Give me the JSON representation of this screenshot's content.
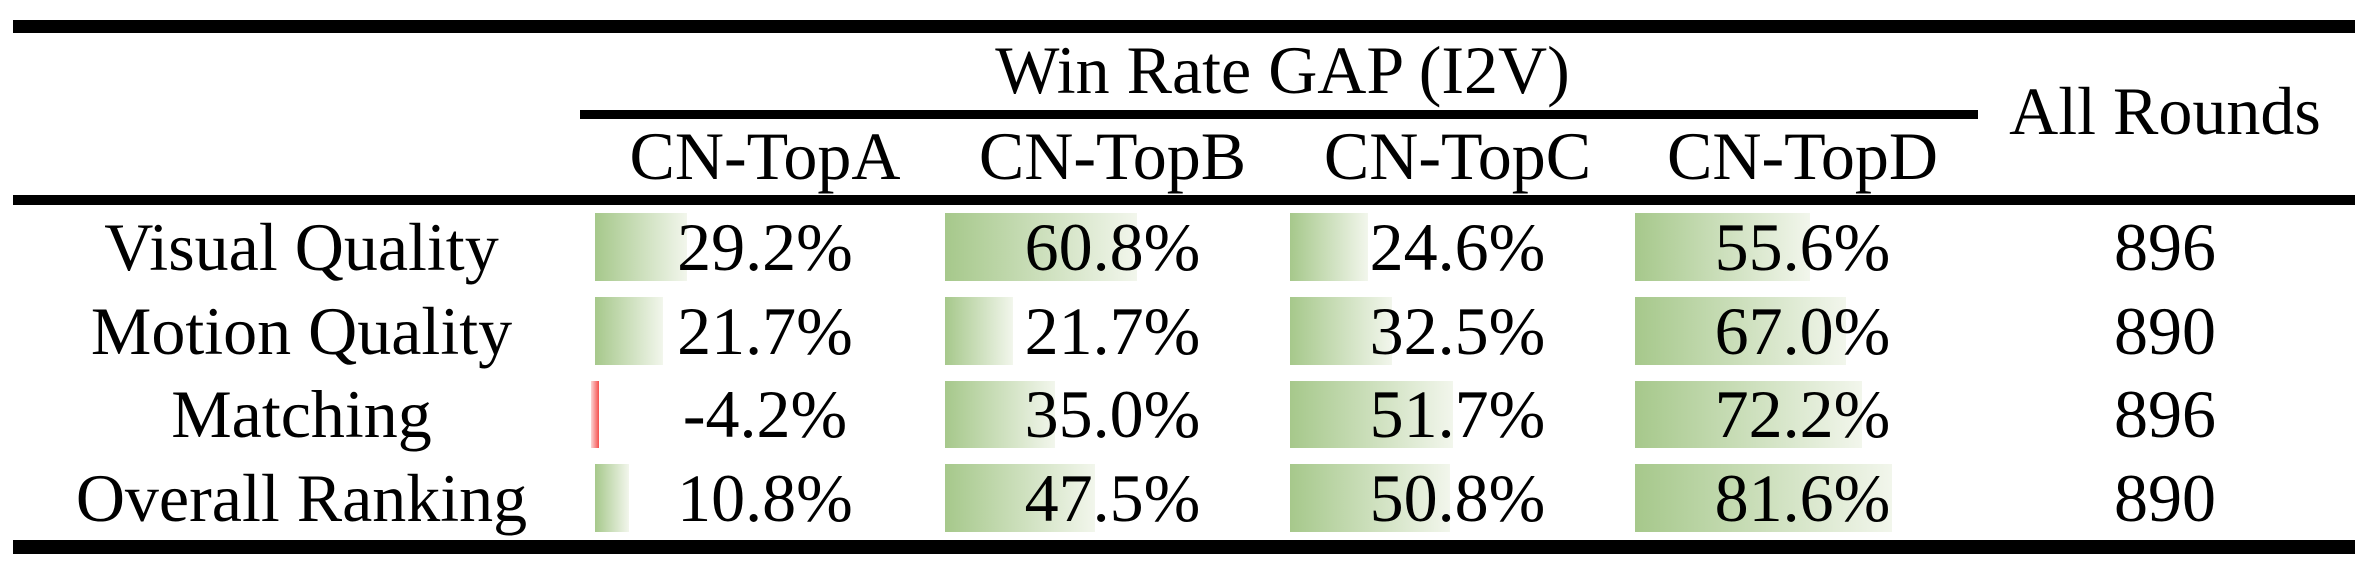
{
  "table": {
    "group_header": "Win Rate GAP (I2V)",
    "all_rounds_header": "All Rounds",
    "columns": [
      "CN-TopA",
      "CN-TopB",
      "CN-TopC",
      "CN-TopD"
    ],
    "rows": [
      {
        "label": "Visual Quality",
        "cells": [
          {
            "text": "29.2%",
            "value": 29.2
          },
          {
            "text": "60.8%",
            "value": 60.8
          },
          {
            "text": "24.6%",
            "value": 24.6
          },
          {
            "text": "55.6%",
            "value": 55.6
          }
        ],
        "all_rounds": "896"
      },
      {
        "label": "Motion Quality",
        "cells": [
          {
            "text": "21.7%",
            "value": 21.7
          },
          {
            "text": "21.7%",
            "value": 21.7
          },
          {
            "text": "32.5%",
            "value": 32.5
          },
          {
            "text": "67.0%",
            "value": 67.0
          }
        ],
        "all_rounds": "890"
      },
      {
        "label": "Matching",
        "cells": [
          {
            "text": "-4.2%",
            "value": -4.2
          },
          {
            "text": "35.0%",
            "value": 35.0
          },
          {
            "text": "51.7%",
            "value": 51.7
          },
          {
            "text": "72.2%",
            "value": 72.2
          }
        ],
        "all_rounds": "896"
      },
      {
        "label": "Overall Ranking",
        "cells": [
          {
            "text": "10.8%",
            "value": 10.8
          },
          {
            "text": "47.5%",
            "value": 47.5
          },
          {
            "text": "50.8%",
            "value": 50.8
          },
          {
            "text": "81.6%",
            "value": 81.6
          }
        ],
        "all_rounds": "890"
      }
    ],
    "colors": {
      "bar_green_start": "#a6c88b",
      "bar_green_end": "#f2f6ec",
      "bar_negative_start": "#fdd5d5",
      "bar_negative_end": "#f4504e",
      "rule": "#000000",
      "text": "#000000"
    }
  },
  "chart_data": {
    "type": "table",
    "title": "Win Rate GAP (I2V)",
    "columns": [
      "CN-TopA",
      "CN-TopB",
      "CN-TopC",
      "CN-TopD",
      "All Rounds"
    ],
    "rows": [
      "Visual Quality",
      "Motion Quality",
      "Matching",
      "Overall Ranking"
    ],
    "win_rate_gap_percent": [
      [
        29.2,
        60.8,
        24.6,
        55.6
      ],
      [
        21.7,
        21.7,
        32.5,
        67.0
      ],
      [
        -4.2,
        35.0,
        51.7,
        72.2
      ],
      [
        10.8,
        47.5,
        50.8,
        81.6
      ]
    ],
    "all_rounds": [
      896,
      890,
      896,
      890
    ],
    "bar_style": "left-anchored green gradient data bars, negative values shown as thin red bar"
  }
}
